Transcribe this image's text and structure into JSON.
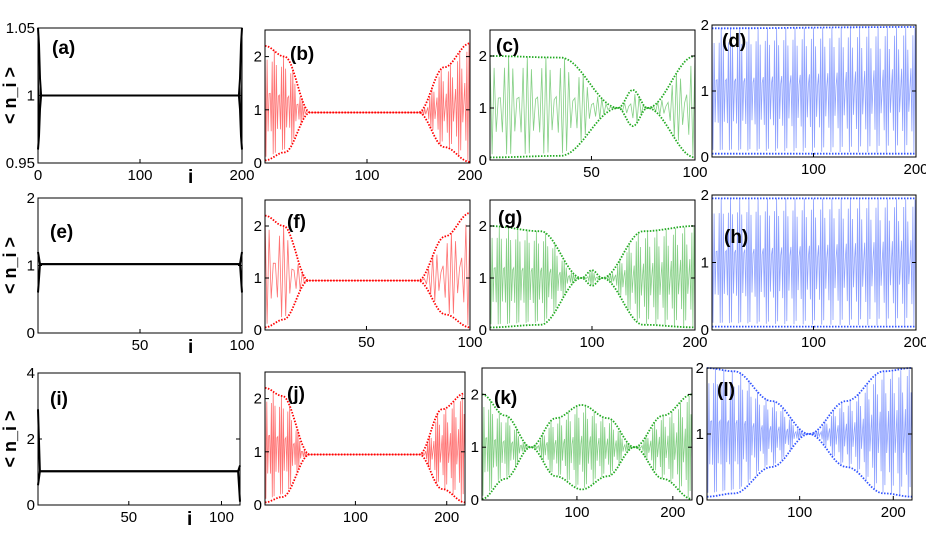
{
  "chart_data": {
    "type": "line",
    "ylabel": "< n_i >",
    "xlabel": "i",
    "panels": [
      {
        "label": "(a)",
        "color": "#000000",
        "xlim": [
          0,
          200
        ],
        "ylim": [
          0.95,
          1.05
        ],
        "xticks": [
          0,
          100,
          200
        ],
        "yticks": [
          0.95,
          1,
          1.05
        ],
        "ytick_labels": [
          "0.95",
          "1",
          "1.05"
        ],
        "xtick_labels": [
          "0",
          "100",
          "200"
        ],
        "show_xlabel": true,
        "show_ylabel": true,
        "envelope": [
          [
            0,
            1.05,
            0.96
          ],
          [
            3,
            1,
            1
          ],
          [
            197,
            1,
            1
          ],
          [
            200,
            1.05,
            0.96
          ]
        ]
      },
      {
        "label": "(b)",
        "color": "#ff0000",
        "xlim": [
          1,
          200
        ],
        "ylim": [
          0,
          2.5
        ],
        "xticks": [
          100,
          200
        ],
        "yticks": [
          0,
          1,
          2
        ],
        "ytick_labels": [
          "0",
          "1",
          "2"
        ],
        "xtick_labels": [
          "100",
          "200"
        ],
        "envelope": [
          [
            1,
            2.2,
            0.05
          ],
          [
            20,
            2.0,
            0.2
          ],
          [
            45,
            0.95,
            0.95
          ],
          [
            150,
            0.95,
            0.95
          ],
          [
            175,
            1.8,
            0.3
          ],
          [
            200,
            2.25,
            0.02
          ]
        ]
      },
      {
        "label": "(c)",
        "color": "#22aa22",
        "xlim": [
          1,
          100
        ],
        "ylim": [
          0,
          2.5
        ],
        "xticks": [
          50,
          100
        ],
        "yticks": [
          0,
          1,
          2
        ],
        "ytick_labels": [
          "0",
          "1",
          "2"
        ],
        "xtick_labels": [
          "50",
          "100"
        ],
        "envelope": [
          [
            1,
            2,
            0.05
          ],
          [
            35,
            1.97,
            0.08
          ],
          [
            63,
            1,
            1
          ],
          [
            70,
            1.35,
            0.65
          ],
          [
            77,
            1,
            1
          ],
          [
            100,
            2,
            0.05
          ]
        ]
      },
      {
        "label": "(d)",
        "color": "#3355ff",
        "xlim": [
          1,
          200
        ],
        "ylim": [
          0,
          2
        ],
        "xticks": [
          100,
          200
        ],
        "yticks": [
          0,
          1,
          2
        ],
        "ytick_labels": [
          "0",
          "1",
          "2"
        ],
        "xtick_labels": [
          "100",
          "200"
        ],
        "envelope": [
          [
            1,
            1.95,
            0.05
          ],
          [
            200,
            1.97,
            0.05
          ]
        ]
      },
      {
        "label": "(e)",
        "color": "#000000",
        "xlim": [
          0,
          100
        ],
        "ylim": [
          0,
          2
        ],
        "xticks": [
          50,
          100
        ],
        "yticks": [
          0,
          1,
          2
        ],
        "ytick_labels": [
          "0",
          "1",
          "2"
        ],
        "xtick_labels": [
          "50",
          "100"
        ],
        "show_xlabel": true,
        "show_ylabel": true,
        "envelope": [
          [
            0,
            1.2,
            0.6
          ],
          [
            1,
            1.02,
            1.02
          ],
          [
            99,
            1.02,
            1.02
          ],
          [
            100,
            1.2,
            0.6
          ]
        ]
      },
      {
        "label": "(f)",
        "color": "#ff0000",
        "xlim": [
          1,
          100
        ],
        "ylim": [
          0,
          2.5
        ],
        "xticks": [
          50,
          100
        ],
        "yticks": [
          0,
          1,
          2
        ],
        "ytick_labels": [
          "0",
          "1",
          "2"
        ],
        "xtick_labels": [
          "50",
          "100"
        ],
        "envelope": [
          [
            1,
            2.2,
            0.05
          ],
          [
            10,
            2.0,
            0.2
          ],
          [
            22,
            0.95,
            0.95
          ],
          [
            75,
            0.95,
            0.95
          ],
          [
            88,
            1.8,
            0.3
          ],
          [
            100,
            2.25,
            0.05
          ]
        ]
      },
      {
        "label": "(g)",
        "color": "#22aa22",
        "xlim": [
          1,
          200
        ],
        "ylim": [
          0,
          2.5
        ],
        "xticks": [
          100,
          200
        ],
        "yticks": [
          0,
          1,
          2
        ],
        "ytick_labels": [
          "0",
          "1",
          "2"
        ],
        "xtick_labels": [
          "100",
          "200"
        ],
        "envelope": [
          [
            1,
            2,
            0.05
          ],
          [
            50,
            1.9,
            0.1
          ],
          [
            90,
            1,
            1
          ],
          [
            100,
            1.15,
            0.85
          ],
          [
            110,
            1,
            1
          ],
          [
            150,
            1.9,
            0.1
          ],
          [
            200,
            2,
            0.05
          ]
        ]
      },
      {
        "label": "(h)",
        "color": "#3355ff",
        "xlim": [
          1,
          200
        ],
        "ylim": [
          0,
          2
        ],
        "xticks": [
          100,
          200
        ],
        "yticks": [
          0,
          1,
          2
        ],
        "ytick_labels": [
          "0",
          "1",
          "2"
        ],
        "xtick_labels": [
          "100",
          "200"
        ],
        "envelope": [
          [
            1,
            1.95,
            0.05
          ],
          [
            200,
            1.95,
            0.05
          ]
        ]
      },
      {
        "label": "(i)",
        "color": "#000000",
        "xlim": [
          1,
          110
        ],
        "ylim": [
          0,
          4
        ],
        "xticks": [
          50,
          100
        ],
        "yticks": [
          0,
          2,
          4
        ],
        "ytick_labels": [
          "0",
          "2",
          "4"
        ],
        "xtick_labels": [
          "50",
          "100"
        ],
        "show_xlabel": true,
        "show_ylabel": true,
        "envelope": [
          [
            1,
            2.9,
            0.6
          ],
          [
            2,
            1.02,
            1.02
          ],
          [
            109,
            1.02,
            1.02
          ],
          [
            110,
            1.2,
            0.1
          ]
        ]
      },
      {
        "label": "(j)",
        "color": "#ff0000",
        "xlim": [
          1,
          220
        ],
        "ylim": [
          0,
          2.5
        ],
        "xticks": [
          100,
          200
        ],
        "yticks": [
          0,
          1,
          2
        ],
        "ytick_labels": [
          "0",
          "1",
          "2"
        ],
        "xtick_labels": [
          "100",
          "200"
        ],
        "envelope": [
          [
            1,
            2.2,
            0.05
          ],
          [
            20,
            2.05,
            0.15
          ],
          [
            50,
            0.95,
            0.95
          ],
          [
            170,
            0.95,
            0.95
          ],
          [
            195,
            1.8,
            0.3
          ],
          [
            220,
            2.1,
            0.05
          ]
        ]
      },
      {
        "label": "(k)",
        "color": "#22aa22",
        "xlim": [
          1,
          220
        ],
        "ylim": [
          0,
          2.5
        ],
        "xticks": [
          100,
          200
        ],
        "yticks": [
          0,
          1,
          2
        ],
        "ytick_labels": [
          "0",
          "1",
          "2"
        ],
        "xtick_labels": [
          "100",
          "200"
        ],
        "envelope": [
          [
            1,
            2,
            0.02
          ],
          [
            25,
            1.6,
            0.4
          ],
          [
            52,
            1,
            1
          ],
          [
            78,
            1.55,
            0.45
          ],
          [
            105,
            1.8,
            0.2
          ],
          [
            132,
            1.55,
            0.45
          ],
          [
            160,
            1,
            1
          ],
          [
            190,
            1.6,
            0.4
          ],
          [
            220,
            2,
            0.02
          ]
        ]
      },
      {
        "label": "(l)",
        "color": "#3355ff",
        "xlim": [
          1,
          220
        ],
        "ylim": [
          0,
          2
        ],
        "xticks": [
          100,
          200
        ],
        "yticks": [
          0,
          1,
          2
        ],
        "ytick_labels": [
          "0",
          "1",
          "2"
        ],
        "xtick_labels": [
          "100",
          "200"
        ],
        "envelope": [
          [
            1,
            2,
            0.05
          ],
          [
            30,
            1.95,
            0.1
          ],
          [
            70,
            1.5,
            0.5
          ],
          [
            110,
            1,
            1
          ],
          [
            150,
            1.5,
            0.5
          ],
          [
            190,
            1.95,
            0.1
          ],
          [
            220,
            2,
            0.05
          ]
        ]
      }
    ]
  }
}
